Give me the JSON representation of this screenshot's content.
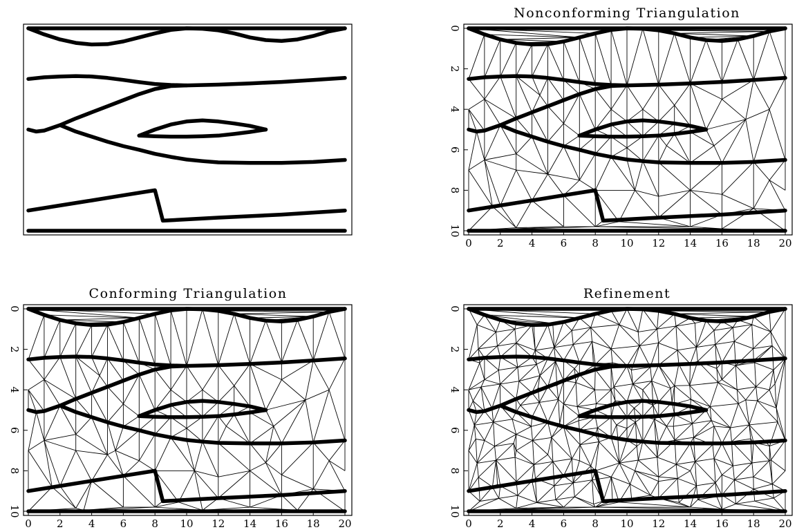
{
  "panels": [
    {
      "id": "layer-model",
      "title": "",
      "axes": false,
      "mesh": "none"
    },
    {
      "id": "nonconforming",
      "title": "Nonconforming Triangulation",
      "axes": true,
      "mesh": "coarse"
    },
    {
      "id": "conforming",
      "title": "Conforming Triangulation",
      "axes": true,
      "mesh": "conforming"
    },
    {
      "id": "refinement",
      "title": "Refinement",
      "axes": true,
      "mesh": "refined"
    }
  ],
  "axes": {
    "x_ticks": [
      "0",
      "2",
      "4",
      "6",
      "8",
      "10",
      "12",
      "14",
      "16",
      "18",
      "20"
    ],
    "y_ticks": [
      "0",
      "2",
      "4",
      "6",
      "8",
      "10"
    ],
    "x_range": [
      0,
      20
    ],
    "y_range": [
      0,
      10
    ],
    "y_inverted": true
  },
  "colors": {
    "ink": "#000000",
    "background": "#ffffff"
  }
}
